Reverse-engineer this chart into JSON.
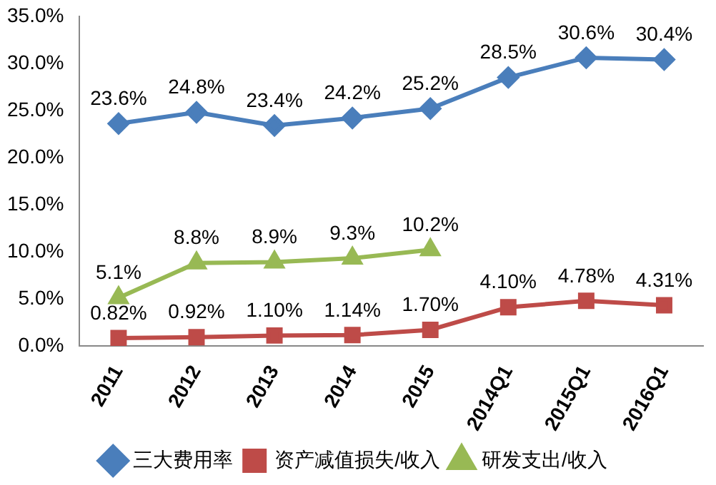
{
  "chart_data": {
    "type": "line",
    "categories": [
      "2011",
      "2012",
      "2013",
      "2014",
      "2015",
      "2014Q1",
      "2015Q1",
      "2016Q1"
    ],
    "series": [
      {
        "name": "三大费用率",
        "color": "#4a7ebb",
        "marker": "diamond",
        "values": [
          23.6,
          24.8,
          23.4,
          24.2,
          25.2,
          28.5,
          30.6,
          30.4
        ],
        "value_labels": [
          "23.6%",
          "24.8%",
          "23.4%",
          "24.2%",
          "25.2%",
          "28.5%",
          "30.6%",
          "30.4%"
        ]
      },
      {
        "name": "资产减值损失/收入",
        "color": "#be4b48",
        "marker": "square",
        "values": [
          0.82,
          0.92,
          1.1,
          1.14,
          1.7,
          4.1,
          4.78,
          4.31
        ],
        "value_labels": [
          "0.82%",
          "0.92%",
          "1.10%",
          "1.14%",
          "1.70%",
          "4.10%",
          "4.78%",
          "4.31%"
        ]
      },
      {
        "name": "研发支出/收入",
        "color": "#98b954",
        "marker": "triangle",
        "values": [
          5.1,
          8.8,
          8.9,
          9.3,
          10.2,
          null,
          null,
          null
        ],
        "value_labels": [
          "5.1%",
          "8.8%",
          "8.9%",
          "9.3%",
          "10.2%",
          null,
          null,
          null
        ]
      }
    ],
    "ylim": [
      0,
      35
    ],
    "yticks": [
      {
        "value": 0,
        "label": "0.0%"
      },
      {
        "value": 5,
        "label": "5.0%"
      },
      {
        "value": 10,
        "label": "10.0%"
      },
      {
        "value": 15,
        "label": "15.0%"
      },
      {
        "value": 20,
        "label": "20.0%"
      },
      {
        "value": 25,
        "label": "25.0%"
      },
      {
        "value": 30,
        "label": "30.0%"
      },
      {
        "value": 35,
        "label": "35.0%"
      }
    ],
    "grid": false,
    "legend": "bottom",
    "line_style": "solid"
  }
}
